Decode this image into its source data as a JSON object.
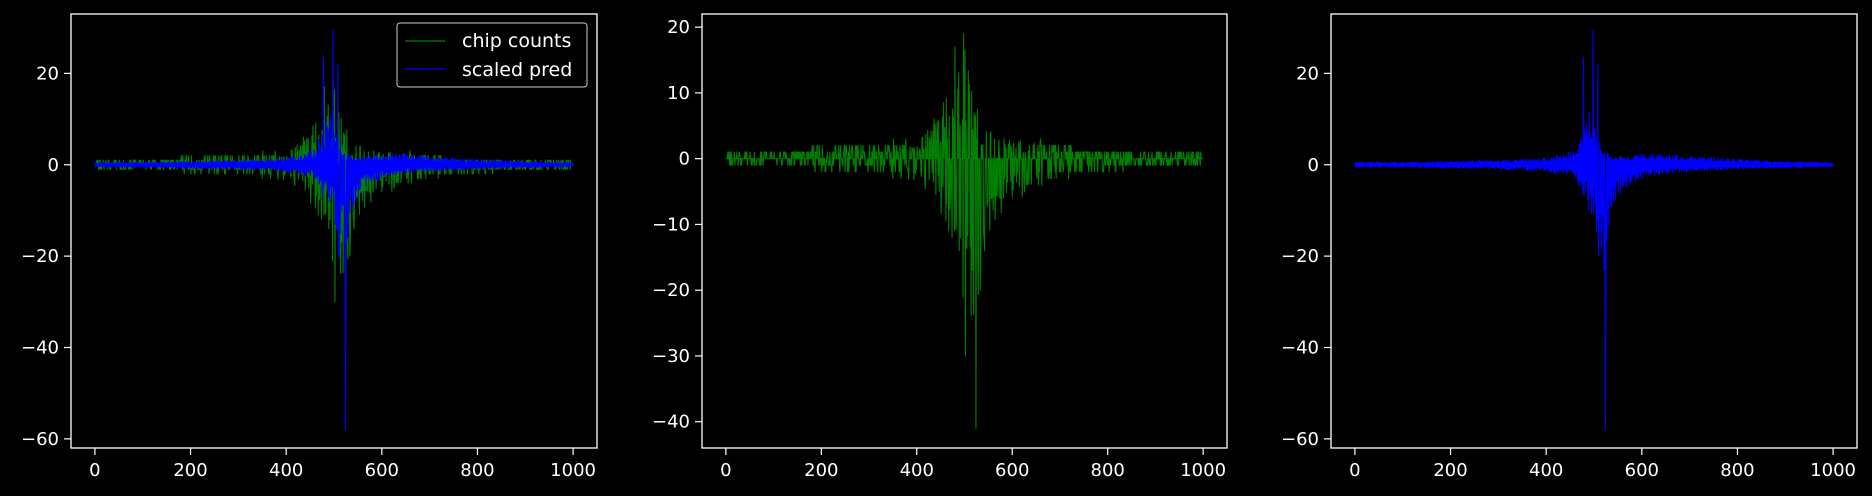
{
  "colors": {
    "background": "#000000",
    "foreground": "#ffffff",
    "chip_counts": "#008000",
    "scaled_pred": "#0000ff"
  },
  "chart_data": [
    {
      "type": "line",
      "title": "",
      "xlabel": "",
      "ylabel": "",
      "xlim": [
        -50,
        1050
      ],
      "ylim": [
        -62,
        33
      ],
      "xticks": [
        0,
        200,
        400,
        600,
        800,
        1000
      ],
      "xtick_labels": [
        "0",
        "200",
        "400",
        "600",
        "800",
        "1000"
      ],
      "yticks": [
        20,
        0,
        -20,
        -40,
        -60
      ],
      "ytick_labels": [
        "20",
        "0",
        "−20",
        "−40",
        "−60"
      ],
      "legend": {
        "placement": "top-right",
        "entries": [
          "chip counts",
          "scaled pred"
        ]
      },
      "series": [
        {
          "name": "chip counts",
          "color": "#008000",
          "envelope": {
            "x": [
              0,
              100,
              200,
              300,
              380,
              420,
              460,
              480,
              500,
              510,
              520,
              530,
              540,
              560,
              600,
              650,
              700,
              800,
              900,
              1000
            ],
            "upper": [
              1,
              1,
              2,
              2,
              3,
              5,
              9,
              13,
              19,
              12,
              9,
              7,
              5,
              4,
              3,
              3,
              2,
              1,
              1,
              1
            ],
            "lower": [
              -1,
              -1,
              -2,
              -2,
              -3,
              -5,
              -10,
              -14,
              -30,
              -18,
              -41,
              -24,
              -19,
              -12,
              -7,
              -5,
              -3,
              -2,
              -1,
              -1
            ]
          },
          "peaks": [
            {
              "x": 480,
              "y": 17
            },
            {
              "x": 498,
              "y": 19
            },
            {
              "x": 502,
              "y": -30
            },
            {
              "x": 524,
              "y": -41
            },
            {
              "x": 533,
              "y": -20
            }
          ]
        },
        {
          "name": "scaled pred",
          "color": "#0000ff",
          "envelope": {
            "x": [
              0,
              100,
              200,
              300,
              400,
              440,
              460,
              480,
              490,
              500,
              510,
              520,
              530,
              540,
              560,
              600,
              650,
              700,
              800,
              900,
              1000
            ],
            "upper": [
              0.6,
              0.6,
              0.8,
              1,
              1.5,
              2.5,
              4,
              8,
              12,
              10,
              6,
              3,
              2.5,
              2,
              2,
              2.5,
              2.5,
              2,
              1.2,
              0.8,
              0.5
            ],
            "lower": [
              -0.6,
              -0.6,
              -0.8,
              -1,
              -1.5,
              -2.5,
              -3,
              -8,
              -10,
              -12,
              -20,
              -25,
              -15,
              -10,
              -6,
              -3,
              -2,
              -1.5,
              -1,
              -0.7,
              -0.5
            ]
          },
          "peaks": [
            {
              "x": 478,
              "y": 23.5
            },
            {
              "x": 498,
              "y": 29.5
            },
            {
              "x": 508,
              "y": 22
            },
            {
              "x": 510,
              "y": -20
            },
            {
              "x": 524,
              "y": -58
            }
          ]
        }
      ]
    },
    {
      "type": "line",
      "title": "",
      "xlabel": "",
      "ylabel": "",
      "xlim": [
        -50,
        1050
      ],
      "ylim": [
        -44,
        22
      ],
      "xticks": [
        0,
        200,
        400,
        600,
        800,
        1000
      ],
      "xtick_labels": [
        "0",
        "200",
        "400",
        "600",
        "800",
        "1000"
      ],
      "yticks": [
        20,
        10,
        0,
        -10,
        -20,
        -30,
        -40
      ],
      "ytick_labels": [
        "20",
        "10",
        "0",
        "−10",
        "−20",
        "−30",
        "−40"
      ],
      "series": [
        {
          "color": "#008000",
          "envelope": {
            "x": [
              0,
              100,
              200,
              300,
              380,
              420,
              460,
              480,
              500,
              510,
              520,
              530,
              540,
              560,
              600,
              650,
              700,
              800,
              900,
              1000
            ],
            "upper": [
              1,
              1,
              2,
              2,
              3,
              5,
              9,
              13,
              19,
              12,
              9,
              7,
              5,
              4,
              3,
              3,
              2,
              1,
              1,
              1
            ],
            "lower": [
              -1,
              -1,
              -2,
              -2,
              -3,
              -5,
              -10,
              -14,
              -30,
              -18,
              -41,
              -24,
              -19,
              -12,
              -7,
              -5,
              -3,
              -2,
              -1,
              -1
            ]
          },
          "peaks": [
            {
              "x": 480,
              "y": 17
            },
            {
              "x": 498,
              "y": 19
            },
            {
              "x": 502,
              "y": -30
            },
            {
              "x": 524,
              "y": -41
            },
            {
              "x": 533,
              "y": -20
            }
          ]
        }
      ]
    },
    {
      "type": "line",
      "title": "",
      "xlabel": "",
      "ylabel": "",
      "xlim": [
        -50,
        1050
      ],
      "ylim": [
        -62,
        33
      ],
      "xticks": [
        0,
        200,
        400,
        600,
        800,
        1000
      ],
      "xtick_labels": [
        "0",
        "200",
        "400",
        "600",
        "800",
        "1000"
      ],
      "yticks": [
        20,
        0,
        -20,
        -40,
        -60
      ],
      "ytick_labels": [
        "20",
        "0",
        "−20",
        "−40",
        "−60"
      ],
      "series": [
        {
          "color": "#0000ff",
          "envelope": {
            "x": [
              0,
              100,
              200,
              300,
              400,
              440,
              460,
              480,
              490,
              500,
              510,
              520,
              530,
              540,
              560,
              600,
              650,
              700,
              800,
              900,
              1000
            ],
            "upper": [
              0.6,
              0.6,
              0.8,
              1,
              1.5,
              2.5,
              4,
              8,
              12,
              10,
              6,
              3,
              2.5,
              2,
              2,
              2.5,
              2.5,
              2,
              1.2,
              0.8,
              0.5
            ],
            "lower": [
              -0.6,
              -0.6,
              -0.8,
              -1,
              -1.5,
              -2.5,
              -3,
              -8,
              -10,
              -12,
              -20,
              -25,
              -15,
              -10,
              -6,
              -3,
              -2,
              -1.5,
              -1,
              -0.7,
              -0.5
            ]
          },
          "peaks": [
            {
              "x": 478,
              "y": 23.5
            },
            {
              "x": 498,
              "y": 29.5
            },
            {
              "x": 508,
              "y": 22
            },
            {
              "x": 510,
              "y": -20
            },
            {
              "x": 524,
              "y": -58
            }
          ]
        }
      ]
    }
  ]
}
